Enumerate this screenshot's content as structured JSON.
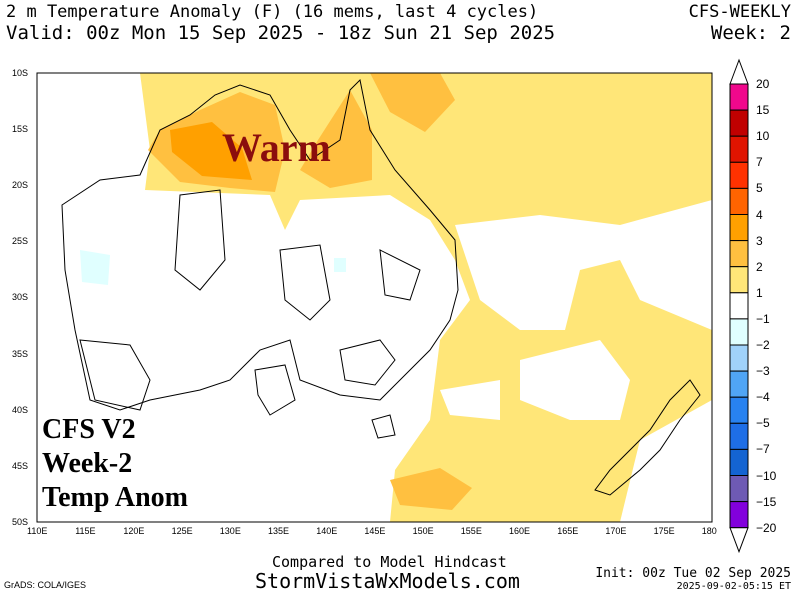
{
  "header": {
    "title_line1": "2 m Temperature Anomaly (F) (16 mems, last 4 cycles)",
    "title_line2": "Valid: 00z Mon 15 Sep 2025 - 18z Sun 21 Sep 2025",
    "model": "CFS-WEEKLY",
    "week": "Week: 2"
  },
  "overlays": {
    "warm": "Warm",
    "line1": "CFS V2",
    "line2": "Week-2",
    "line3": "Temp Anom"
  },
  "axes": {
    "lat_ticks": [
      "10S",
      "15S",
      "20S",
      "25S",
      "30S",
      "35S",
      "40S",
      "45S",
      "50S"
    ],
    "lon_ticks": [
      "110E",
      "115E",
      "120E",
      "125E",
      "130E",
      "135E",
      "140E",
      "145E",
      "150E",
      "155E",
      "160E",
      "165E",
      "170E",
      "175E",
      "180"
    ]
  },
  "colorbar": {
    "labels": [
      "20",
      "15",
      "10",
      "7",
      "5",
      "4",
      "3",
      "2",
      "1",
      "-1",
      "-2",
      "-3",
      "-4",
      "-5",
      "-7",
      "-10",
      "-15",
      "-20"
    ],
    "colors": [
      "#f0088c",
      "#c00000",
      "#e01400",
      "#ff3200",
      "#ff6400",
      "#ffa000",
      "#ffc040",
      "#ffe678",
      "#ffffff",
      "#e0ffff",
      "#a0d2fa",
      "#50a5f5",
      "#2882f0",
      "#1e6ee6",
      "#1464d2",
      "#6e5ab4",
      "#8200dc"
    ]
  },
  "footer": {
    "compared": "Compared to Model Hindcast",
    "site": "StormVistaWxModels.com",
    "grads": "GrADS: COLA/IGES",
    "init": "Init: 00z Tue 02 Sep 2025",
    "stamp": "2025-09-02-05:15 ET"
  }
}
